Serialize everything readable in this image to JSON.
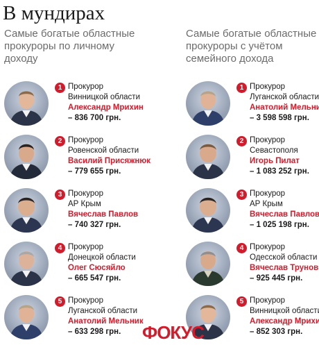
{
  "title": "В мундирах",
  "left": {
    "subtitle_lines": [
      "Самые богатые областные",
      "прокуроры по личному",
      "доходу"
    ],
    "items": [
      {
        "rank": "1",
        "role": "Прокурор",
        "region": "Винницкой области",
        "name": "Александр Мрихин",
        "income": "– 836 700 грн."
      },
      {
        "rank": "2",
        "role": "Прокурор",
        "region": "Ровенской области",
        "name": "Василий Присяжнюк",
        "income": "– 779 655 грн."
      },
      {
        "rank": "3",
        "role": "Прокурор",
        "region": "АР Крым",
        "name": "Вячеслав Павлов",
        "income": "– 740 327 грн."
      },
      {
        "rank": "4",
        "role": "Прокурор",
        "region": "Донецкой области",
        "name": "Олег Сюсяйло",
        "income": "– 665 547 грн."
      },
      {
        "rank": "5",
        "role": "Прокурор",
        "region": "Луганской области",
        "name": "Анатолий Мельник",
        "income": "– 633 298 грн."
      }
    ]
  },
  "right": {
    "subtitle_lines": [
      "Самые богатые областные",
      "прокуроры с учётом",
      "семейного дохода"
    ],
    "items": [
      {
        "rank": "1",
        "role": "Прокурор",
        "region": "Луганской области",
        "name": "Анатолий Мельник",
        "income": "– 3 598 598 грн."
      },
      {
        "rank": "2",
        "role": "Прокурор",
        "region": "Севастополя",
        "name": "Игорь Пилат",
        "income": "– 1 083 252 грн."
      },
      {
        "rank": "3",
        "role": "Прокурор",
        "region": "АР Крым",
        "name": "Вячеслав Павлов",
        "income": "– 1 025 198 грн."
      },
      {
        "rank": "4",
        "role": "Прокурор",
        "region": "Одесской области",
        "name": "Вячеслав Трунов",
        "income": "– 925 445 грн."
      },
      {
        "rank": "5",
        "role": "Прокурор",
        "region": "Винницкой области",
        "name": "Александр Мрихин",
        "income": "– 852 303 грн."
      }
    ]
  },
  "brand": "ФОКУС",
  "colors": {
    "accent": "#d21c2c",
    "subtitle": "#6b6b6b",
    "text": "#1a1a1a"
  }
}
